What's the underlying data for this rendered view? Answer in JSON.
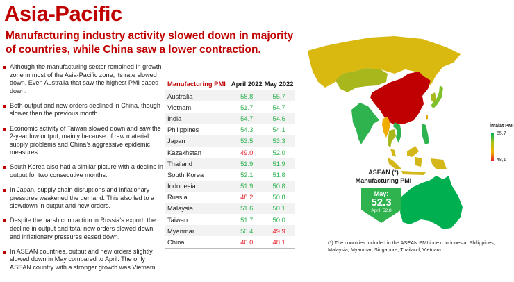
{
  "header": {
    "title": "Asia-Pacific",
    "subtitle": "Manufacturing industry activity slowed down in majority of countries, while China saw a lower contraction."
  },
  "bullets": [
    "Although the manufacturing sector remained in growth zone in most of the Asia-Pacific zone, its rate slowed down.  Even Australia that saw the highest PMI eased down.",
    "Both output and new orders declined in China, though slower than the previous month.",
    "Economic activity of Taiwan slowed down and saw the 2-year low output, mainly because of raw material supply problems and China’s aggressive epidemic measures.",
    "South Korea also had a similar picture with a decline in output for two consecutive months.",
    "In Japan, supply chain disruptions and inflationary pressures weakened the demand. This also led to a slowdown in output and new orders.",
    "Despite the harsh contraction in Russia’s export, the decline in output and total new orders slowed down, and inflationary pressures eased down.",
    "In ASEAN countries, output and new orders slightly slowed down in May compared to April. The only ASEAN country with a stronger growth was Vietnam."
  ],
  "table": {
    "headers": [
      "Manufacturing PMI",
      "April 2022",
      "May 2022"
    ],
    "rows": [
      {
        "country": "Australia",
        "april": "58.8",
        "may": "55.7"
      },
      {
        "country": "Vietnam",
        "april": "51.7",
        "may": "54.7"
      },
      {
        "country": "India",
        "april": "54.7",
        "may": "54.6"
      },
      {
        "country": "Philippines",
        "april": "54.3",
        "may": "54.1"
      },
      {
        "country": "Japan",
        "april": "53.5",
        "may": "53.3"
      },
      {
        "country": "Kazakhstan",
        "april": "49.0",
        "may": "52.0"
      },
      {
        "country": "Thailand",
        "april": "51.9",
        "may": "51.9"
      },
      {
        "country": "South Korea",
        "april": "52.1",
        "may": "51.8"
      },
      {
        "country": "Indonesia",
        "april": "51.9",
        "may": "50.8"
      },
      {
        "country": "Russia",
        "april": "48.2",
        "may": "50.8"
      },
      {
        "country": "Malaysia",
        "april": "51.6",
        "may": "50.1"
      },
      {
        "country": "Taiwan",
        "april": "51.7",
        "may": "50.0"
      },
      {
        "country": "Myanmar",
        "april": "50.4",
        "may": "49.9"
      },
      {
        "country": "China",
        "april": "46.0",
        "may": "48.1"
      }
    ],
    "colors": {
      "growth": "#2eb34f",
      "contraction": "#e8212c"
    },
    "threshold": 50
  },
  "map": {
    "legend_title": "İmalat PMI",
    "legend_max": "55,7",
    "legend_min": "48,1",
    "region_colors": {
      "russia": "#d9b80f",
      "kazakhstan": "#a8b81c",
      "china": "#c00000",
      "india": "#2eb34f",
      "myanmar": "#f0ac00",
      "thailand": "#a8b81c",
      "vietnam": "#2eb34f",
      "indonesia": "#d4b81a",
      "malaysia": "#d4b81a",
      "philippines": "#2eb34f",
      "japan": "#7fc12a",
      "korea": "#a8b81c",
      "taiwan": "#e0a800",
      "australia": "#00b050"
    }
  },
  "asean": {
    "label_line1": "ASEAN (*)",
    "label_line2": "Manufacturing PMI",
    "may_label": "May:",
    "may_value": "52.3",
    "april_text": "April: 52.8"
  },
  "footnote": "(*) The countries included in the ASEAN PMI index: Indonesia, Philippines, Malaysia, Myanmar, Singapore, Thailand, Vietnam."
}
